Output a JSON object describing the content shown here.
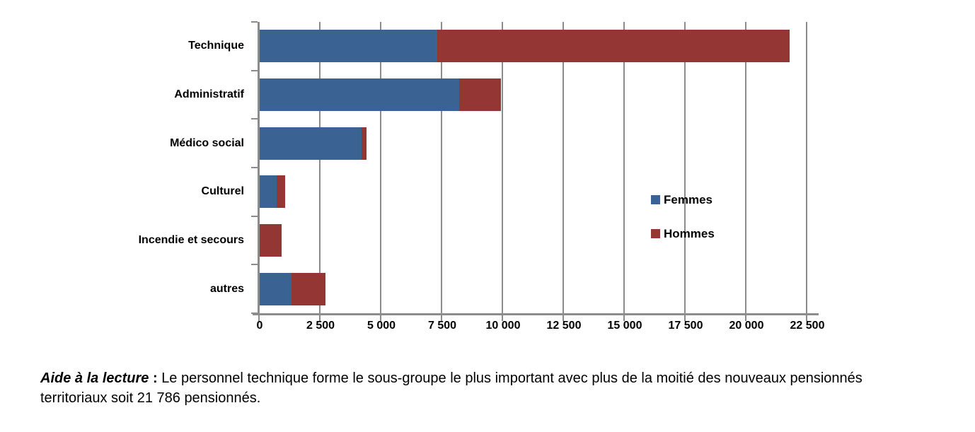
{
  "chart_data": {
    "type": "bar",
    "orientation": "horizontal",
    "stacked": true,
    "title": "",
    "xlabel": "",
    "ylabel": "",
    "grid": "vertical",
    "legend_position": "inside-right",
    "xlim": [
      0,
      22500
    ],
    "categories": [
      "Technique",
      "Administratif",
      "Médico social",
      "Culturel",
      "Incendie et secours",
      "autres"
    ],
    "series": [
      {
        "name": "Femmes",
        "color": "#3A6394",
        "values": [
          7300,
          8200,
          4200,
          700,
          0,
          1300
        ]
      },
      {
        "name": "Hommes",
        "color": "#943634",
        "values": [
          14486,
          1700,
          200,
          350,
          900,
          1400
        ]
      }
    ],
    "totals": [
      21786,
      9900,
      4400,
      1050,
      900,
      2700
    ],
    "x_ticks": [
      {
        "value": 0,
        "label": "0"
      },
      {
        "value": 2500,
        "label": "2 500"
      },
      {
        "value": 5000,
        "label": "5 000"
      },
      {
        "value": 7500,
        "label": "7 500"
      },
      {
        "value": 10000,
        "label": "10 000"
      },
      {
        "value": 12500,
        "label": "12 500"
      },
      {
        "value": 15000,
        "label": "15 000"
      },
      {
        "value": 17500,
        "label": "17 500"
      },
      {
        "value": 20000,
        "label": "20 000"
      },
      {
        "value": 22500,
        "label": "22 500"
      }
    ]
  },
  "note": {
    "label": "Aide à la lecture",
    "separator": " : ",
    "text": "Le personnel technique forme le sous-groupe le plus important avec plus de la moitié des nouveaux pensionnés territoriaux soit 21 786 pensionnés."
  },
  "colors": {
    "femmes": "#3A6394",
    "hommes": "#943634",
    "gridline": "#8C8C8C",
    "axis": "#8C8C8C",
    "text": "#000000"
  }
}
